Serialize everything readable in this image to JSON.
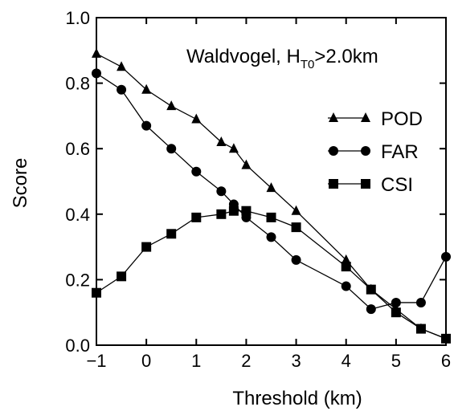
{
  "chart_data": {
    "type": "line",
    "title": "",
    "xlabel": "Threshold (km)",
    "ylabel": "Score",
    "xlim": [
      -1,
      6
    ],
    "ylim": [
      0,
      1
    ],
    "xticks": [
      -1,
      0,
      1,
      2,
      3,
      4,
      5,
      6
    ],
    "xtick_labels": [
      "−1",
      "0",
      "1",
      "2",
      "3",
      "4",
      "5",
      "6"
    ],
    "yticks": [
      0,
      0.2,
      0.4,
      0.6,
      0.8,
      1.0
    ],
    "ytick_labels": [
      "0.0",
      "0.2",
      "0.4",
      "0.6",
      "0.8",
      "1.0"
    ],
    "grid": false,
    "legend_position": "right",
    "annotation": {
      "prefix": "Waldvogel, H",
      "subscript": "T0",
      "suffix": ">2.0km"
    },
    "series": [
      {
        "name": "POD",
        "marker": "triangle",
        "x": [
          -1,
          -0.5,
          0,
          0.5,
          1,
          1.5,
          1.75,
          2,
          2.5,
          3,
          4,
          4.5,
          5,
          5.5,
          6
        ],
        "y": [
          0.89,
          0.85,
          0.78,
          0.73,
          0.69,
          0.62,
          0.6,
          0.55,
          0.48,
          0.41,
          0.26,
          0.17,
          0.11,
          0.05,
          0.02
        ]
      },
      {
        "name": "FAR",
        "marker": "circle",
        "x": [
          -1,
          -0.5,
          0,
          0.5,
          1,
          1.5,
          1.75,
          2,
          2.5,
          3,
          4,
          4.5,
          5,
          5.5,
          6
        ],
        "y": [
          0.83,
          0.78,
          0.67,
          0.6,
          0.53,
          0.47,
          0.43,
          0.39,
          0.33,
          0.26,
          0.18,
          0.11,
          0.13,
          0.13,
          0.27
        ]
      },
      {
        "name": "CSI",
        "marker": "square",
        "x": [
          -1,
          -0.5,
          0,
          0.5,
          1,
          1.5,
          1.75,
          2,
          2.5,
          3,
          4,
          4.5,
          5,
          5.5,
          6
        ],
        "y": [
          0.16,
          0.21,
          0.3,
          0.34,
          0.39,
          0.4,
          0.41,
          0.41,
          0.39,
          0.36,
          0.24,
          0.17,
          0.1,
          0.05,
          0.02
        ]
      }
    ]
  }
}
